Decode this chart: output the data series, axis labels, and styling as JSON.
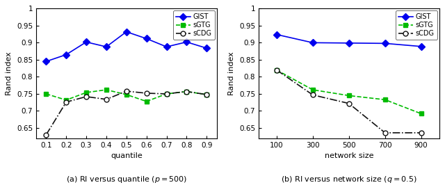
{
  "left": {
    "x": [
      0.1,
      0.2,
      0.3,
      0.4,
      0.5,
      0.6,
      0.7,
      0.8,
      0.9
    ],
    "GIST": [
      0.845,
      0.865,
      0.902,
      0.888,
      0.932,
      0.912,
      0.888,
      0.902,
      0.884
    ],
    "sGTG": [
      0.75,
      0.732,
      0.754,
      0.762,
      0.748,
      0.728,
      0.75,
      0.757,
      0.748
    ],
    "sCDG": [
      0.63,
      0.726,
      0.742,
      0.734,
      0.758,
      0.752,
      0.75,
      0.757,
      0.748
    ],
    "xlabel": "quantile",
    "ylabel": "Rand index",
    "caption": "(a) RI versus quantile ($p = 500$)",
    "xlim": [
      0.05,
      0.95
    ],
    "ylim": [
      0.62,
      1.0
    ],
    "yticks": [
      0.65,
      0.7,
      0.75,
      0.8,
      0.85,
      0.9,
      0.95,
      1.0
    ],
    "xticks": [
      0.1,
      0.2,
      0.3,
      0.4,
      0.5,
      0.6,
      0.7,
      0.8,
      0.9
    ]
  },
  "right": {
    "x": [
      100,
      300,
      500,
      700,
      900
    ],
    "GIST": [
      0.924,
      0.9,
      0.899,
      0.898,
      0.889
    ],
    "sGTG": [
      0.82,
      0.762,
      0.745,
      0.733,
      0.692
    ],
    "sCDG": [
      0.82,
      0.747,
      0.722,
      0.636,
      0.636
    ],
    "xlabel": "network size",
    "ylabel": "Rand index",
    "caption": "(b) RI versus network size ($q = 0.5$)",
    "xlim": [
      0,
      1000
    ],
    "ylim": [
      0.62,
      1.0
    ],
    "yticks": [
      0.65,
      0.7,
      0.75,
      0.8,
      0.85,
      0.9,
      0.95,
      1.0
    ],
    "xticks": [
      100,
      300,
      500,
      700,
      900
    ]
  },
  "GIST_color": "#0000ee",
  "sGTG_color": "#00bb00",
  "sCDG_color": "#111111",
  "figsize": [
    6.4,
    2.76
  ],
  "dpi": 100
}
